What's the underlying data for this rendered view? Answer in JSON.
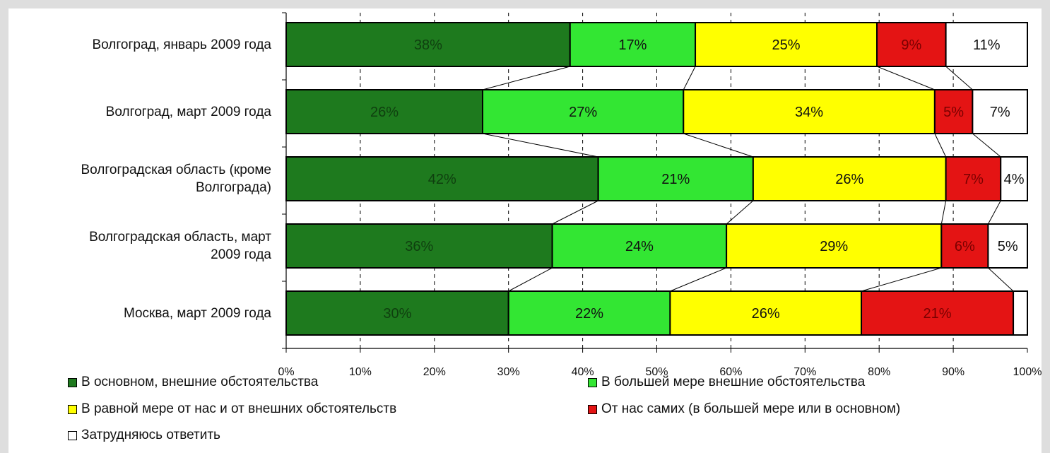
{
  "chart_data": {
    "type": "bar",
    "orientation": "horizontal",
    "stacked": true,
    "categories": [
      [
        "Волгоград, январь 2009 года"
      ],
      [
        "Волгоград, март 2009 года"
      ],
      [
        "Волгоградская область (кроме",
        "Волгограда)"
      ],
      [
        "Волгоградская область, март",
        "2009 года"
      ],
      [
        "Москва, март 2009 года"
      ]
    ],
    "series": [
      {
        "name": "В основном, внешние обстоятельства",
        "color": "#1e7a1e",
        "values": [
          38.3,
          26.5,
          42.1,
          35.9,
          30.0
        ],
        "labels": [
          "38%",
          "26%",
          "42%",
          "36%",
          "30%"
        ]
      },
      {
        "name": "В большей мере внешние обстоятельства",
        "color": "#33e633",
        "values": [
          16.9,
          27.1,
          20.9,
          23.5,
          21.8
        ],
        "labels": [
          "17%",
          "27%",
          "21%",
          "24%",
          "22%"
        ]
      },
      {
        "name": "В равной мере от нас и от внешних обстоятельств",
        "color": "#ffff00",
        "values": [
          24.5,
          33.9,
          26.0,
          29.0,
          25.8
        ],
        "labels": [
          "25%",
          "34%",
          "26%",
          "29%",
          "26%"
        ]
      },
      {
        "name": "От нас самих (в большей мере или в основном)",
        "color": "#e41414",
        "values": [
          9.3,
          5.1,
          7.4,
          6.3,
          20.5
        ],
        "labels": [
          "9%",
          "5%",
          "7%",
          "6%",
          "21%"
        ]
      },
      {
        "name": "Затрудняюсь ответить",
        "color": "#ffffff",
        "values": [
          11.0,
          7.4,
          3.6,
          5.3,
          1.9
        ],
        "labels": [
          "11%",
          "7%",
          "4%",
          "5%",
          ""
        ]
      }
    ],
    "xlim": [
      0,
      100
    ],
    "xticks": [
      "0%",
      "10%",
      "20%",
      "30%",
      "40%",
      "50%",
      "60%",
      "70%",
      "80%",
      "90%",
      "100%"
    ],
    "grid": "vertical dashed",
    "legend_position": "bottom"
  }
}
